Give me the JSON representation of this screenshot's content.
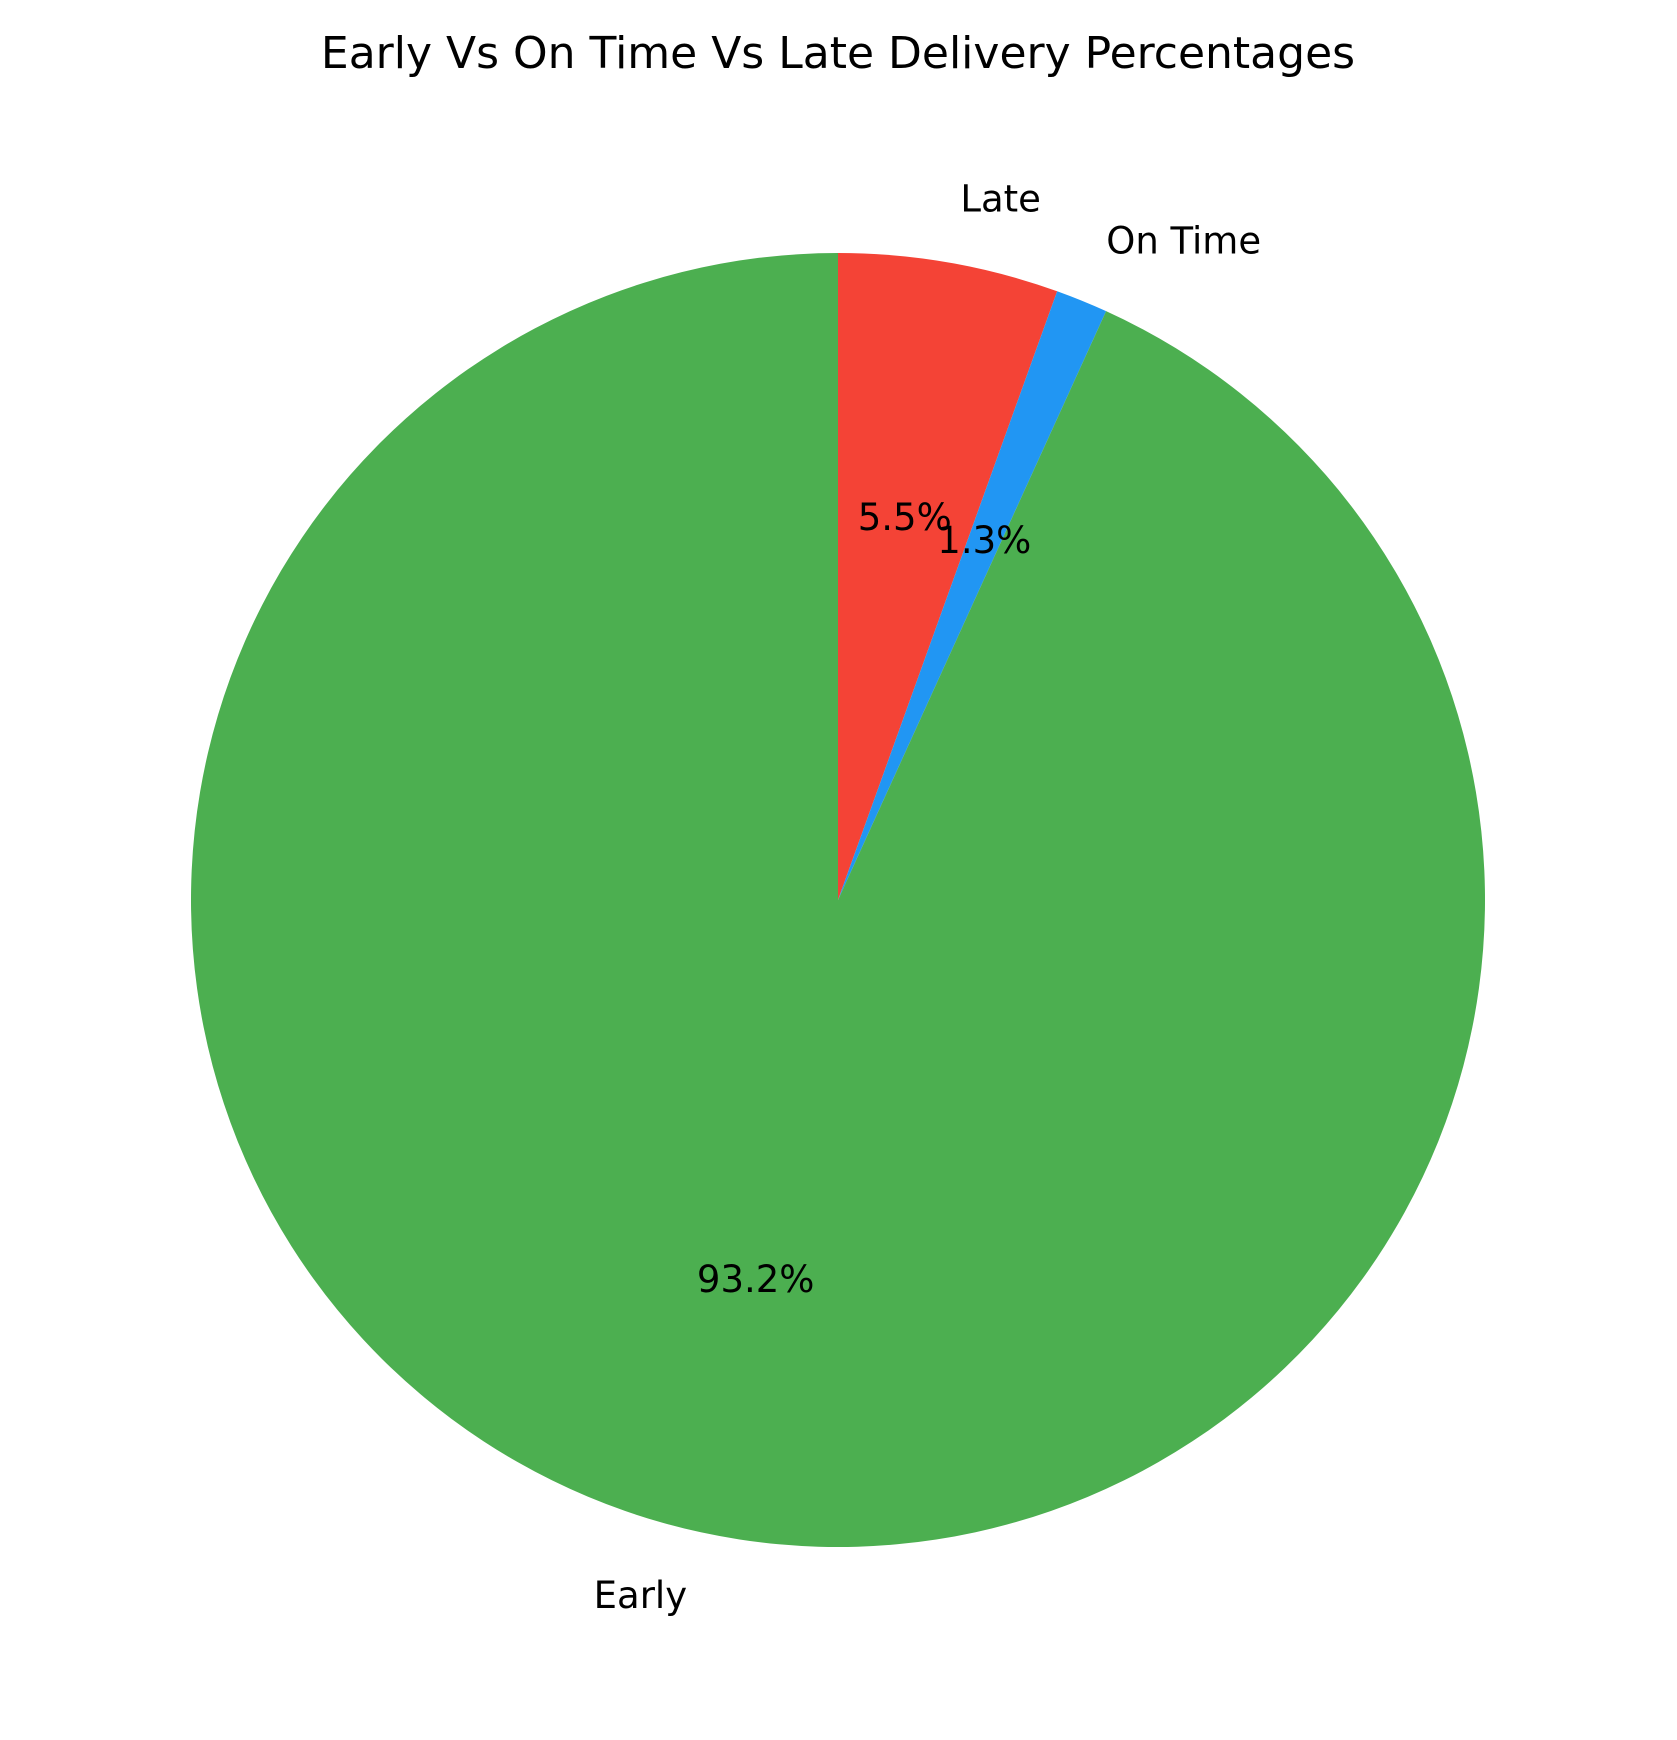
{
  "chart_data": {
    "type": "pie",
    "title": "Early Vs On Time Vs Late Delivery Percentages",
    "start_angle_deg": 90,
    "direction": "clockwise",
    "slices": [
      {
        "label": "Late",
        "value": 5.5,
        "pct_label": "5.5%",
        "color": "#F44336"
      },
      {
        "label": "On Time",
        "value": 1.3,
        "pct_label": "1.3%",
        "color": "#2196F3"
      },
      {
        "label": "Early",
        "value": 93.2,
        "pct_label": "93.2%",
        "color": "#4CAF50"
      }
    ]
  }
}
